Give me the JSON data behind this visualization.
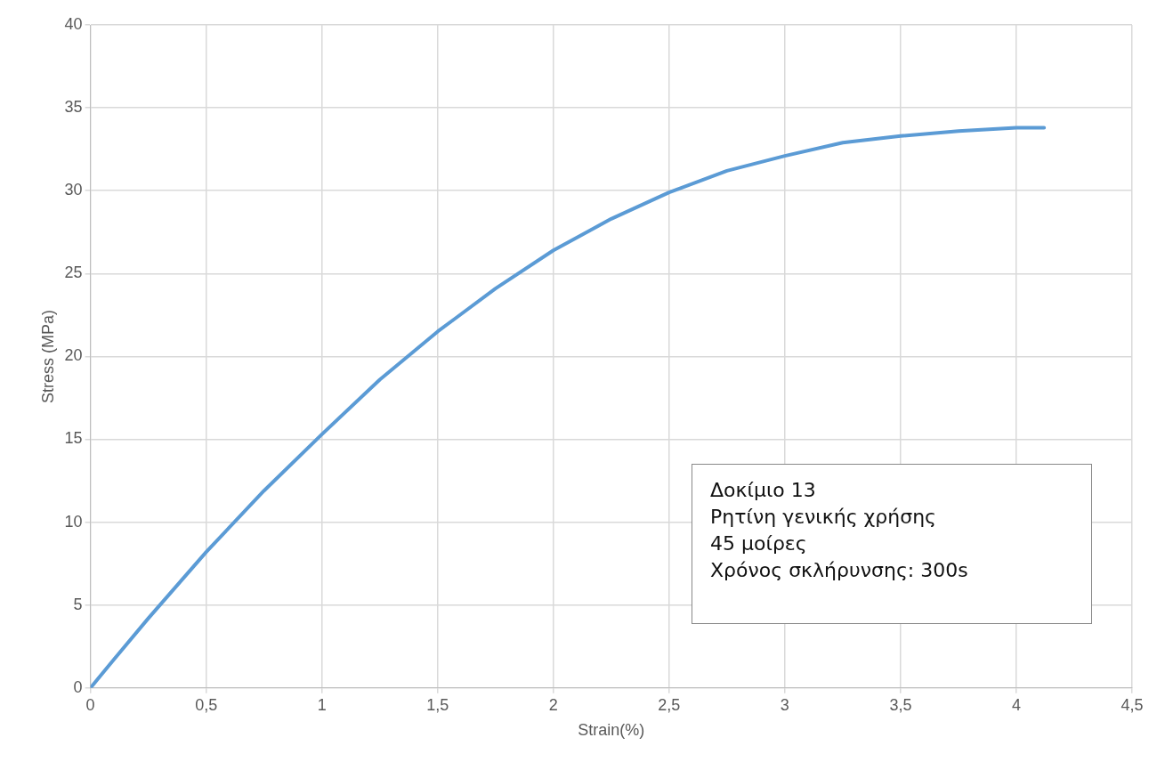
{
  "chart_data": {
    "type": "line",
    "xlabel": "Strain(%)",
    "ylabel": "Stress (MPa)",
    "x": [
      0,
      0.1,
      0.25,
      0.5,
      0.75,
      1,
      1.25,
      1.5,
      1.75,
      2,
      2.25,
      2.5,
      2.75,
      3,
      3.25,
      3.5,
      3.75,
      4,
      4.12
    ],
    "series": [
      {
        "color": "#5b9bd5",
        "values": [
          0,
          1.7,
          4.2,
          8.2,
          11.9,
          15.3,
          18.6,
          21.5,
          24.1,
          26.4,
          28.3,
          29.9,
          31.2,
          32.1,
          32.9,
          33.3,
          33.6,
          33.8,
          33.8
        ]
      }
    ],
    "xlim": [
      0,
      4.5
    ],
    "ylim": [
      0,
      40
    ],
    "xticks": [
      0,
      {
        "value": 0.5,
        "label": "0,5"
      },
      1,
      {
        "value": 1.5,
        "label": "1,5"
      },
      2,
      {
        "value": 2.5,
        "label": "2,5"
      },
      3,
      {
        "value": 3.5,
        "label": "3,5"
      },
      4,
      {
        "value": 4.5,
        "label": "4,5"
      }
    ],
    "yticks": [
      0,
      5,
      10,
      15,
      20,
      25,
      30,
      35,
      40
    ],
    "grid": true,
    "legend": false,
    "marker": "none",
    "line_style": "solid",
    "annotations": [
      "Δοκίμιο 13",
      "Ρητίνη γενικής χρήσης",
      "45 μοίρες",
      "Χρόνος σκλήρυνσης: 300s"
    ]
  }
}
